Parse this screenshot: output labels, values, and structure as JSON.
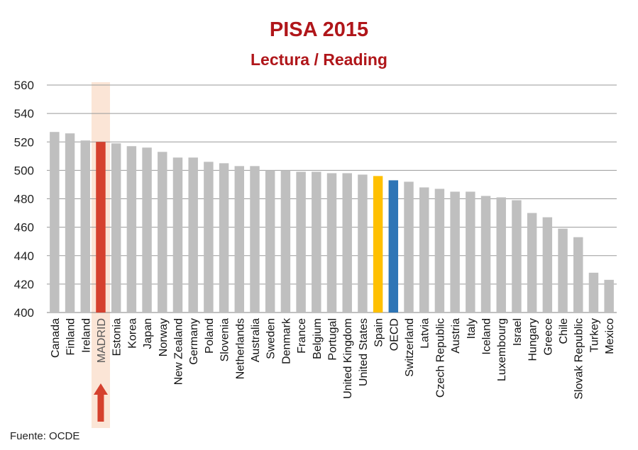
{
  "chart_data": {
    "type": "bar",
    "title": "PISA 2015",
    "subtitle": "Lectura / Reading",
    "source": "Fuente: OCDE",
    "ylim": [
      400,
      560
    ],
    "yticks": [
      400,
      420,
      440,
      460,
      480,
      500,
      520,
      540,
      560
    ],
    "grid": true,
    "categories": [
      "Canada",
      "Finland",
      "Ireland",
      "MADRID",
      "Estonia",
      "Korea",
      "Japan",
      "Norway",
      "New Zealand",
      "Germany",
      "Poland",
      "Slovenia",
      "Netherlands",
      "Australia",
      "Sweden",
      "Denmark",
      "France",
      "Belgium",
      "Portugal",
      "United Kingdom",
      "United States",
      "Spain",
      "OECD",
      "Switzerland",
      "Latvia",
      "Czech Republic",
      "Austria",
      "Italy",
      "Iceland",
      "Luxembourg",
      "Israel",
      "Hungary",
      "Greece",
      "Chile",
      "Slovak Republic",
      "Turkey",
      "Mexico"
    ],
    "values": [
      527,
      526,
      521,
      520,
      519,
      517,
      516,
      513,
      509,
      509,
      506,
      505,
      503,
      503,
      500,
      500,
      499,
      499,
      498,
      498,
      497,
      496,
      493,
      492,
      488,
      487,
      485,
      485,
      482,
      481,
      479,
      470,
      467,
      459,
      453,
      428,
      423
    ],
    "colors": {
      "default": "#bfbfbf",
      "MADRID": "#d5412e",
      "Spain": "#ffc000",
      "OECD": "#2e75b6",
      "highlight_band": "#fbe5d6",
      "arrow": "#d5412e",
      "title": "#b0161a"
    },
    "highlight": "MADRID"
  }
}
